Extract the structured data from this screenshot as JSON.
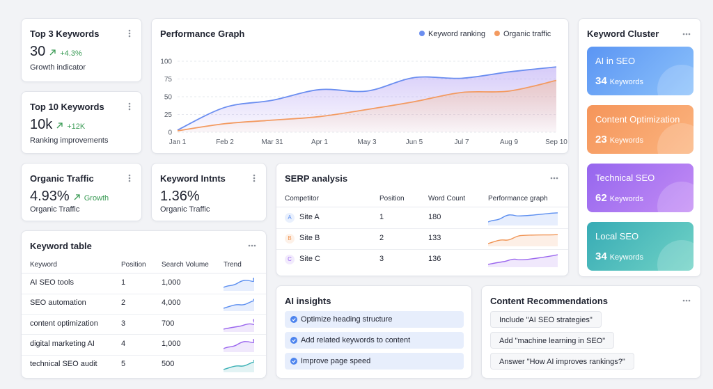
{
  "cards": [
    {
      "title": "Top 3 Keywords",
      "value": "30",
      "change": "+4.3%",
      "label": "Growth indicator"
    },
    {
      "title": "Top 10 Keywords",
      "value": "10k",
      "change": "+12K",
      "label": "Ranking improvements"
    },
    {
      "title": "Organic Traffic",
      "value": "4.93%",
      "change": "Growth",
      "label": "Organic Traffic"
    },
    {
      "title": "Keyword Intnts",
      "value": "1.36%",
      "label": "Organic Traffic"
    }
  ],
  "performance_graph": {
    "type": "line",
    "title": "Performance Graph",
    "categories": [
      "Jan 1",
      "Feb 2",
      "Mar 31",
      "Apr 1",
      "May 3",
      "Jun 5",
      "Jul 7",
      "Aug 9",
      "Sep 10"
    ],
    "series": [
      {
        "name": "Keyword ranking",
        "color": "#6b8ef0",
        "values": [
          3,
          35,
          45,
          60,
          58,
          77,
          76,
          85,
          92
        ]
      },
      {
        "name": "Organic traffic",
        "color": "#f39a60",
        "values": [
          2,
          12,
          17,
          22,
          32,
          43,
          56,
          58,
          73
        ]
      }
    ],
    "ylim": [
      0,
      100
    ],
    "yticks": [
      0,
      25,
      50,
      75,
      100
    ],
    "grid": true
  },
  "keyword_cluster": {
    "title": "Keyword Cluster",
    "items": [
      {
        "name": "AI in SEO",
        "count": 34,
        "unit": "Keywords"
      },
      {
        "name": "Content Optimization",
        "count": 23,
        "unit": "Keywords"
      },
      {
        "name": "Technical SEO",
        "count": 62,
        "unit": "Keywords"
      },
      {
        "name": "Local SEO",
        "count": 34,
        "unit": "Keywords"
      }
    ]
  },
  "serp_analysis": {
    "title": "SERP analysis",
    "columns": [
      "Competitor",
      "Position",
      "Word Count",
      "Performance graph"
    ],
    "rows": [
      [
        "A",
        "Site A",
        "1",
        "180"
      ],
      [
        "B",
        "Site B",
        "2",
        "133"
      ],
      [
        "C",
        "Site C",
        "3",
        "136"
      ]
    ]
  },
  "keyword_table": {
    "title": "Keyword table",
    "columns": [
      "Keyword",
      "Position",
      "Search Volume",
      "Trend"
    ],
    "rows": [
      [
        "AI SEO tools",
        "1",
        "1,000"
      ],
      [
        "SEO automation",
        "2",
        "4,000"
      ],
      [
        "content optimization",
        "3",
        "700"
      ],
      [
        "digital marketing AI",
        "4",
        "1,000"
      ],
      [
        "technical SEO audit",
        "5",
        "500"
      ]
    ]
  },
  "ai_insights": {
    "title": "AI insights",
    "items": [
      "Optimize heading structure",
      "Add related keywords to content",
      "Improve page speed"
    ]
  },
  "content_recommendations": {
    "title": "Content Recommendations",
    "items": [
      "Include \"AI SEO strategies\"",
      "Add \"machine learning in SEO\"",
      "Answer \"How AI improves rankings?\""
    ]
  }
}
